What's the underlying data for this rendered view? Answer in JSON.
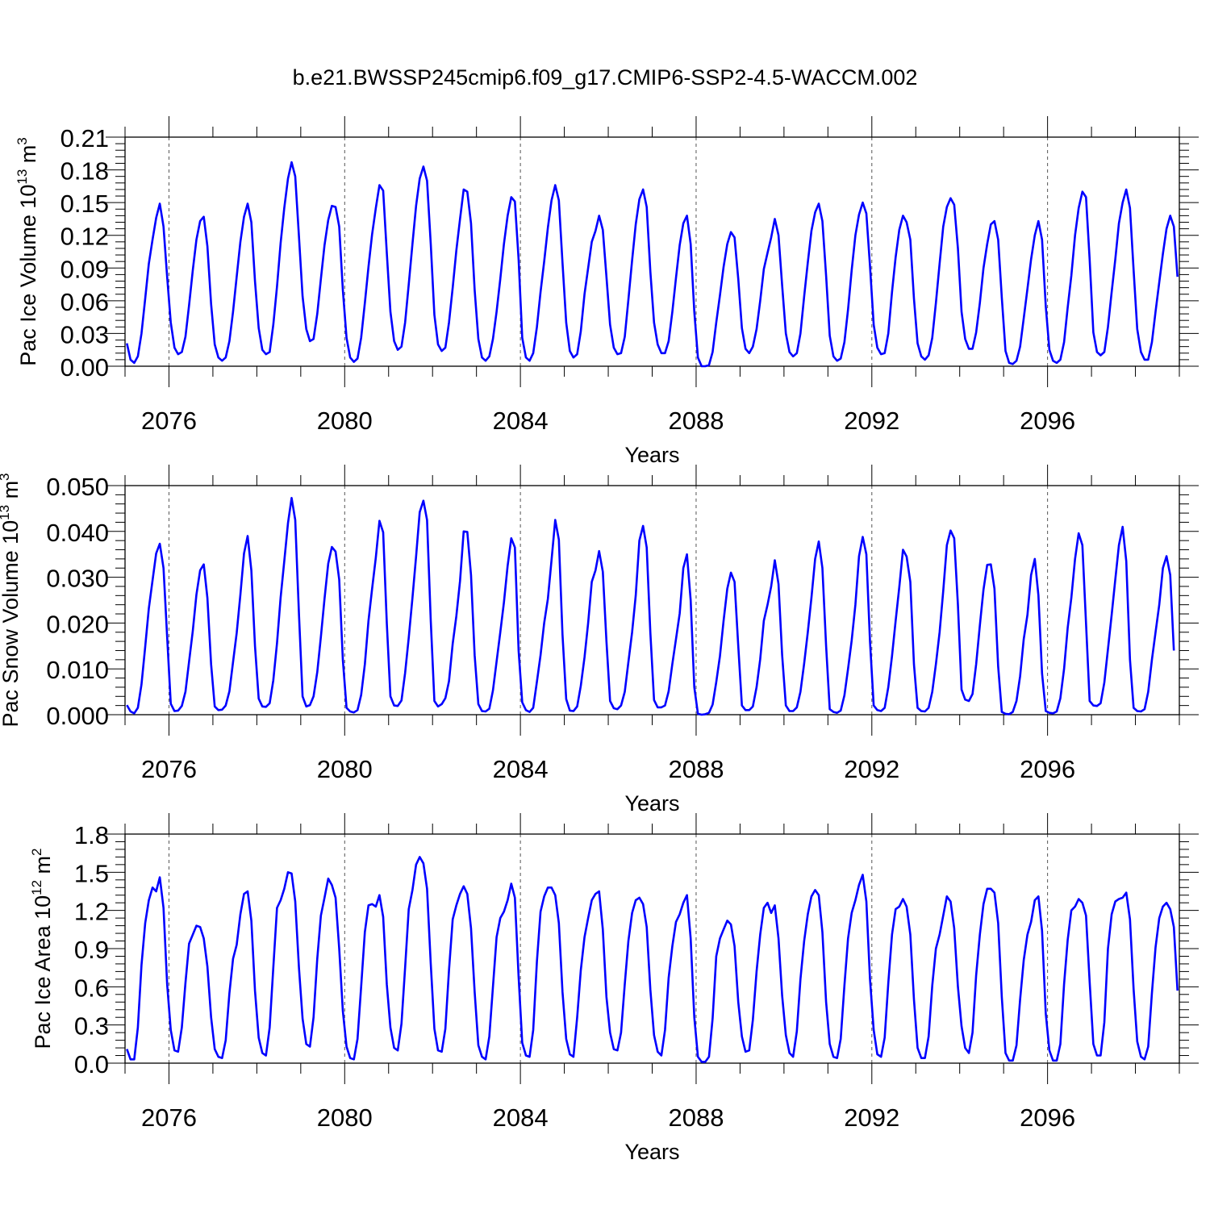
{
  "title": "b.e21.BWSSP245cmip6.f09_g17.CMIP6-SSP2-4.5-WACCM.002",
  "style": {
    "line_color": "#0000ff",
    "axis_color": "#000000",
    "grid_color": "#555555"
  },
  "chart_data": [
    {
      "type": "line",
      "title": "",
      "xlabel": "Years",
      "ylabel": {
        "text": "Pac Ice Volume 10",
        "sup": "13",
        "unit": " m",
        "unit_sup": "3"
      },
      "xlim": [
        2075,
        2099
      ],
      "ylim": [
        0,
        0.21
      ],
      "yticks": [
        "0.00",
        "0.03",
        "0.06",
        "0.09",
        "0.12",
        "0.15",
        "0.18",
        "0.21"
      ],
      "xticks": [
        "2076",
        "2080",
        "2084",
        "2088",
        "2092",
        "2096"
      ],
      "grid": "dashed vertical at major x ticks",
      "series": [
        {
          "name": "",
          "x_start": 2075.042,
          "x_step": 0.0833333,
          "y": [
            0.021,
            0.006,
            0.003,
            0.009,
            0.03,
            0.062,
            0.094,
            0.116,
            0.136,
            0.149,
            0.128,
            0.082,
            0.04,
            0.017,
            0.011,
            0.013,
            0.027,
            0.056,
            0.088,
            0.116,
            0.133,
            0.137,
            0.11,
            0.057,
            0.02,
            0.008,
            0.005,
            0.008,
            0.023,
            0.05,
            0.082,
            0.114,
            0.137,
            0.149,
            0.132,
            0.078,
            0.035,
            0.015,
            0.011,
            0.013,
            0.038,
            0.073,
            0.113,
            0.145,
            0.172,
            0.187,
            0.174,
            0.119,
            0.064,
            0.034,
            0.023,
            0.025,
            0.048,
            0.08,
            0.111,
            0.134,
            0.147,
            0.146,
            0.128,
            0.07,
            0.026,
            0.008,
            0.004,
            0.007,
            0.026,
            0.058,
            0.091,
            0.121,
            0.145,
            0.166,
            0.161,
            0.104,
            0.05,
            0.023,
            0.015,
            0.018,
            0.04,
            0.075,
            0.112,
            0.147,
            0.172,
            0.183,
            0.17,
            0.112,
            0.047,
            0.02,
            0.014,
            0.017,
            0.04,
            0.072,
            0.106,
            0.135,
            0.162,
            0.16,
            0.131,
            0.07,
            0.025,
            0.008,
            0.005,
            0.009,
            0.025,
            0.05,
            0.08,
            0.112,
            0.138,
            0.155,
            0.151,
            0.098,
            0.026,
            0.008,
            0.005,
            0.012,
            0.036,
            0.068,
            0.096,
            0.127,
            0.152,
            0.166,
            0.152,
            0.095,
            0.04,
            0.014,
            0.008,
            0.011,
            0.032,
            0.066,
            0.09,
            0.114,
            0.124,
            0.138,
            0.125,
            0.082,
            0.038,
            0.017,
            0.011,
            0.012,
            0.027,
            0.061,
            0.097,
            0.13,
            0.153,
            0.162,
            0.146,
            0.087,
            0.04,
            0.02,
            0.012,
            0.012,
            0.023,
            0.05,
            0.081,
            0.111,
            0.131,
            0.138,
            0.112,
            0.05,
            0.008,
            0.0,
            0.0,
            0.001,
            0.013,
            0.04,
            0.065,
            0.091,
            0.112,
            0.123,
            0.118,
            0.08,
            0.035,
            0.016,
            0.012,
            0.018,
            0.034,
            0.06,
            0.089,
            0.104,
            0.118,
            0.135,
            0.12,
            0.074,
            0.03,
            0.013,
            0.009,
            0.012,
            0.03,
            0.064,
            0.095,
            0.124,
            0.141,
            0.149,
            0.133,
            0.083,
            0.028,
            0.009,
            0.005,
            0.007,
            0.022,
            0.052,
            0.088,
            0.12,
            0.139,
            0.15,
            0.14,
            0.092,
            0.038,
            0.017,
            0.011,
            0.012,
            0.03,
            0.068,
            0.1,
            0.125,
            0.138,
            0.132,
            0.116,
            0.062,
            0.021,
            0.009,
            0.006,
            0.01,
            0.026,
            0.058,
            0.094,
            0.128,
            0.146,
            0.154,
            0.148,
            0.108,
            0.05,
            0.025,
            0.016,
            0.016,
            0.031,
            0.058,
            0.09,
            0.112,
            0.13,
            0.133,
            0.116,
            0.063,
            0.014,
            0.003,
            0.002,
            0.005,
            0.018,
            0.044,
            0.071,
            0.098,
            0.12,
            0.133,
            0.116,
            0.055,
            0.015,
            0.005,
            0.003,
            0.006,
            0.022,
            0.054,
            0.083,
            0.12,
            0.145,
            0.16,
            0.155,
            0.098,
            0.031,
            0.013,
            0.01,
            0.013,
            0.036,
            0.068,
            0.098,
            0.131,
            0.15,
            0.162,
            0.145,
            0.088,
            0.034,
            0.013,
            0.006,
            0.006,
            0.022,
            0.05,
            0.077,
            0.103,
            0.126,
            0.138,
            0.128,
            0.082
          ]
        }
      ]
    },
    {
      "type": "line",
      "title": "",
      "xlabel": "Years",
      "ylabel": {
        "text": "Pac Snow Volume 10",
        "sup": "13",
        "unit": " m",
        "unit_sup": "3"
      },
      "xlim": [
        2075,
        2099
      ],
      "ylim": [
        0,
        0.05
      ],
      "yticks": [
        "0.000",
        "0.010",
        "0.020",
        "0.030",
        "0.040",
        "0.050"
      ],
      "xticks": [
        "2076",
        "2080",
        "2084",
        "2088",
        "2092",
        "2096"
      ],
      "grid": "dashed vertical at major x ticks",
      "series": [
        {
          "name": "",
          "x_start": 2075.042,
          "x_step": 0.0833333,
          "y": [
            0.0021,
            0.0007,
            0.0003,
            0.0015,
            0.0066,
            0.0148,
            0.0232,
            0.0293,
            0.0352,
            0.0373,
            0.032,
            0.017,
            0.0024,
            0.0008,
            0.0009,
            0.0019,
            0.005,
            0.0116,
            0.0183,
            0.0262,
            0.0315,
            0.0328,
            0.0255,
            0.011,
            0.0018,
            0.001,
            0.0011,
            0.002,
            0.0051,
            0.0115,
            0.0178,
            0.0262,
            0.0352,
            0.039,
            0.0315,
            0.015,
            0.0035,
            0.0018,
            0.0017,
            0.0025,
            0.0075,
            0.0156,
            0.0256,
            0.0335,
            0.0418,
            0.0473,
            0.0425,
            0.022,
            0.004,
            0.0018,
            0.0021,
            0.004,
            0.0093,
            0.017,
            0.0253,
            0.033,
            0.0366,
            0.0356,
            0.0295,
            0.012,
            0.0015,
            0.0007,
            0.0005,
            0.001,
            0.0043,
            0.011,
            0.0205,
            0.0275,
            0.0343,
            0.0423,
            0.0398,
            0.02,
            0.004,
            0.002,
            0.0019,
            0.0031,
            0.0091,
            0.0168,
            0.0255,
            0.0345,
            0.0442,
            0.0467,
            0.0425,
            0.0205,
            0.003,
            0.0018,
            0.0023,
            0.0036,
            0.0073,
            0.0155,
            0.0215,
            0.0292,
            0.04,
            0.0399,
            0.0305,
            0.013,
            0.0023,
            0.0008,
            0.0007,
            0.0013,
            0.0053,
            0.0116,
            0.018,
            0.0245,
            0.0325,
            0.0385,
            0.0365,
            0.014,
            0.0027,
            0.001,
            0.0006,
            0.0015,
            0.0072,
            0.013,
            0.02,
            0.0253,
            0.0337,
            0.0425,
            0.0382,
            0.0175,
            0.0034,
            0.0009,
            0.0008,
            0.0018,
            0.0063,
            0.0125,
            0.02,
            0.029,
            0.0315,
            0.0357,
            0.0312,
            0.016,
            0.003,
            0.0014,
            0.0012,
            0.002,
            0.005,
            0.0115,
            0.018,
            0.026,
            0.038,
            0.0412,
            0.0365,
            0.018,
            0.0032,
            0.0016,
            0.0016,
            0.002,
            0.0051,
            0.0111,
            0.0165,
            0.0221,
            0.032,
            0.035,
            0.025,
            0.006,
            0.0002,
            0.0,
            0.0001,
            0.0004,
            0.0022,
            0.0071,
            0.0128,
            0.0205,
            0.0275,
            0.031,
            0.029,
            0.015,
            0.002,
            0.001,
            0.001,
            0.0018,
            0.006,
            0.0121,
            0.0205,
            0.024,
            0.028,
            0.0337,
            0.0285,
            0.013,
            0.002,
            0.0008,
            0.0008,
            0.0016,
            0.005,
            0.0112,
            0.018,
            0.0255,
            0.034,
            0.0378,
            0.032,
            0.015,
            0.0012,
            0.0006,
            0.0004,
            0.0009,
            0.0042,
            0.01,
            0.0162,
            0.024,
            0.0346,
            0.0388,
            0.035,
            0.016,
            0.002,
            0.001,
            0.0008,
            0.0015,
            0.006,
            0.0128,
            0.0205,
            0.0278,
            0.036,
            0.0345,
            0.029,
            0.011,
            0.0015,
            0.0008,
            0.0007,
            0.0015,
            0.005,
            0.011,
            0.018,
            0.027,
            0.037,
            0.0402,
            0.0385,
            0.024,
            0.0055,
            0.0033,
            0.003,
            0.0045,
            0.011,
            0.0195,
            0.0273,
            0.0327,
            0.0328,
            0.0275,
            0.0105,
            0.0006,
            0.0002,
            0.0001,
            0.0006,
            0.003,
            0.0084,
            0.0165,
            0.0218,
            0.0305,
            0.034,
            0.026,
            0.009,
            0.0008,
            0.0004,
            0.0003,
            0.0007,
            0.0036,
            0.01,
            0.019,
            0.0255,
            0.034,
            0.0396,
            0.037,
            0.02,
            0.003,
            0.002,
            0.0019,
            0.0025,
            0.007,
            0.0143,
            0.0218,
            0.0295,
            0.037,
            0.041,
            0.0335,
            0.012,
            0.0015,
            0.0008,
            0.0007,
            0.0012,
            0.005,
            0.012,
            0.018,
            0.024,
            0.032,
            0.0346,
            0.0305,
            0.014
          ]
        }
      ]
    },
    {
      "type": "line",
      "title": "",
      "xlabel": "Years",
      "ylabel": {
        "text": "Pac Ice Area 10",
        "sup": "12",
        "unit": " m",
        "unit_sup": "2"
      },
      "xlim": [
        2075,
        2099
      ],
      "ylim": [
        0,
        1.8
      ],
      "yticks": [
        "0.0",
        "0.3",
        "0.6",
        "0.9",
        "1.2",
        "1.5",
        "1.8"
      ],
      "xticks": [
        "2076",
        "2080",
        "2084",
        "2088",
        "2092",
        "2096"
      ],
      "grid": "dashed vertical at major x ticks",
      "series": [
        {
          "name": "",
          "x_start": 2075.042,
          "x_step": 0.0833333,
          "y": [
            0.11,
            0.03,
            0.03,
            0.28,
            0.77,
            1.1,
            1.28,
            1.38,
            1.35,
            1.46,
            1.22,
            0.62,
            0.26,
            0.1,
            0.09,
            0.28,
            0.63,
            0.94,
            1.01,
            1.08,
            1.07,
            0.98,
            0.76,
            0.36,
            0.11,
            0.05,
            0.04,
            0.18,
            0.55,
            0.82,
            0.93,
            1.17,
            1.33,
            1.35,
            1.12,
            0.57,
            0.2,
            0.08,
            0.06,
            0.28,
            0.75,
            1.22,
            1.28,
            1.37,
            1.5,
            1.49,
            1.27,
            0.75,
            0.35,
            0.15,
            0.13,
            0.36,
            0.82,
            1.16,
            1.3,
            1.45,
            1.4,
            1.3,
            0.9,
            0.41,
            0.13,
            0.04,
            0.03,
            0.19,
            0.6,
            1.03,
            1.24,
            1.25,
            1.23,
            1.32,
            1.15,
            0.62,
            0.28,
            0.12,
            0.1,
            0.31,
            0.75,
            1.21,
            1.36,
            1.56,
            1.62,
            1.57,
            1.37,
            0.78,
            0.27,
            0.1,
            0.09,
            0.27,
            0.73,
            1.13,
            1.24,
            1.33,
            1.39,
            1.33,
            1.06,
            0.56,
            0.14,
            0.05,
            0.03,
            0.21,
            0.6,
            0.99,
            1.14,
            1.19,
            1.28,
            1.41,
            1.3,
            0.68,
            0.16,
            0.06,
            0.05,
            0.26,
            0.8,
            1.19,
            1.31,
            1.38,
            1.38,
            1.32,
            1.1,
            0.56,
            0.19,
            0.07,
            0.05,
            0.36,
            0.73,
            0.99,
            1.14,
            1.28,
            1.33,
            1.35,
            1.05,
            0.52,
            0.24,
            0.11,
            0.1,
            0.24,
            0.62,
            0.96,
            1.18,
            1.28,
            1.3,
            1.25,
            1.07,
            0.58,
            0.22,
            0.09,
            0.06,
            0.26,
            0.67,
            0.92,
            1.11,
            1.17,
            1.26,
            1.32,
            0.98,
            0.36,
            0.05,
            0.01,
            0.01,
            0.05,
            0.35,
            0.84,
            0.98,
            1.05,
            1.12,
            1.09,
            0.92,
            0.48,
            0.21,
            0.09,
            0.1,
            0.34,
            0.72,
            1.01,
            1.22,
            1.26,
            1.18,
            1.24,
            0.98,
            0.53,
            0.22,
            0.08,
            0.05,
            0.25,
            0.66,
            0.96,
            1.17,
            1.31,
            1.36,
            1.32,
            1.03,
            0.48,
            0.15,
            0.05,
            0.04,
            0.19,
            0.61,
            0.98,
            1.18,
            1.28,
            1.4,
            1.48,
            1.27,
            0.66,
            0.26,
            0.07,
            0.05,
            0.2,
            0.63,
            1.01,
            1.21,
            1.23,
            1.29,
            1.23,
            1.01,
            0.5,
            0.12,
            0.04,
            0.04,
            0.21,
            0.61,
            0.9,
            1.01,
            1.16,
            1.31,
            1.27,
            1.06,
            0.6,
            0.29,
            0.12,
            0.08,
            0.24,
            0.69,
            1.01,
            1.25,
            1.37,
            1.37,
            1.34,
            1.1,
            0.52,
            0.08,
            0.02,
            0.02,
            0.14,
            0.5,
            0.81,
            1.01,
            1.11,
            1.28,
            1.31,
            1.04,
            0.39,
            0.1,
            0.02,
            0.02,
            0.15,
            0.62,
            0.97,
            1.2,
            1.23,
            1.29,
            1.26,
            1.16,
            0.64,
            0.15,
            0.06,
            0.06,
            0.32,
            0.9,
            1.17,
            1.27,
            1.29,
            1.3,
            1.34,
            1.13,
            0.58,
            0.17,
            0.05,
            0.03,
            0.13,
            0.55,
            0.91,
            1.14,
            1.23,
            1.26,
            1.21,
            1.07,
            0.57
          ]
        }
      ]
    }
  ]
}
